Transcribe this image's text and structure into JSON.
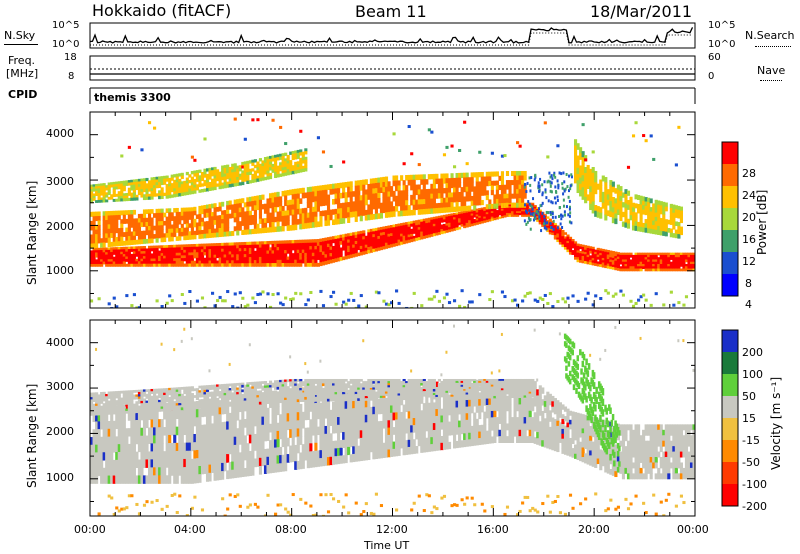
{
  "header": {
    "site": "Hokkaido (fitACF)",
    "beam": "Beam 11",
    "date": "18/Mar/2011"
  },
  "noise_panel": {
    "left_label": "N.Sky",
    "right_label": "N.Search",
    "left_ticks": [
      "10^5",
      "10^0"
    ],
    "right_ticks": [
      "10^5",
      "10^0"
    ]
  },
  "freq_panel": {
    "left_label_1": "Freq.",
    "left_label_2": "[MHz]",
    "left_ticks": [
      "18",
      "8"
    ],
    "right_label": "Nave",
    "right_ticks": [
      "60",
      "0"
    ]
  },
  "cpid_panel": {
    "label": "CPID",
    "value": "themis 3300"
  },
  "power_panel": {
    "ylabel": "Slant Range [km]",
    "yticks": [
      "4000",
      "3000",
      "2000",
      "1000"
    ],
    "colorbar_label": "Power [dB]",
    "colorbar_ticks": [
      "28",
      "24",
      "20",
      "16",
      "12",
      "8",
      "4"
    ],
    "colorbar_colors": [
      "#ff0000",
      "#ff6a00",
      "#ffc000",
      "#a8d83a",
      "#3fa06a",
      "#1a4fd0",
      "#0000ff"
    ]
  },
  "velocity_panel": {
    "ylabel": "Slant Range [km]",
    "yticks": [
      "4000",
      "3000",
      "2000",
      "1000"
    ],
    "colorbar_label": "Velocity [m s⁻¹]",
    "colorbar_ticks": [
      "200",
      "100",
      "50",
      "15",
      "-15",
      "-50",
      "-100",
      "-200"
    ],
    "colorbar_colors": [
      "#1a2fc8",
      "#1a7a3a",
      "#5fcf3a",
      "#c8c8c0",
      "#f0c040",
      "#ff8a00",
      "#ff3a00",
      "#ff0000"
    ]
  },
  "x_axis": {
    "ticks": [
      "00:00",
      "04:00",
      "08:00",
      "12:00",
      "16:00",
      "20:00",
      "00:00"
    ],
    "label": "Time UT"
  },
  "chart_data": {
    "type": "heatmap",
    "x_range_hours": [
      0,
      24
    ],
    "y_range_km": [
      180,
      4500
    ],
    "power_bands": [
      {
        "name": "near-range E",
        "t": [
          0,
          9,
          16.5,
          17.5,
          19.3,
          21,
          24
        ],
        "lo": [
          1100,
          1100,
          2200,
          2200,
          1200,
          1000,
          1000
        ],
        "hi": [
          1500,
          1700,
          2500,
          2500,
          1600,
          1400,
          1400
        ],
        "level": 28
      },
      {
        "name": "main F",
        "t": [
          0,
          4,
          8,
          12,
          16.5,
          17.2
        ],
        "lo": [
          1500,
          1700,
          1900,
          2200,
          2400,
          2400
        ],
        "hi": [
          2300,
          2400,
          2800,
          3100,
          3200,
          3200
        ],
        "level": 24
      },
      {
        "name": "far F",
        "t": [
          0,
          3,
          6,
          8.5
        ],
        "lo": [
          2500,
          2600,
          2900,
          3200
        ],
        "hi": [
          2900,
          3100,
          3400,
          3700
        ],
        "level": 20
      },
      {
        "name": "after 19h",
        "t": [
          19.2,
          20,
          21.5,
          23.5
        ],
        "lo": [
          2800,
          2200,
          1900,
          1700
        ],
        "hi": [
          3900,
          3200,
          2700,
          2400
        ],
        "level": 20
      }
    ],
    "velocity_main": {
      "t": [
        0,
        4,
        8,
        12,
        16,
        17.5,
        19,
        21,
        24
      ],
      "lo": [
        900,
        900,
        1200,
        1500,
        1800,
        1800,
        1500,
        1000,
        1000
      ],
      "hi": [
        2600,
        2700,
        3000,
        3100,
        3200,
        3200,
        2500,
        2200,
        2200
      ],
      "value": 0
    },
    "velocity_far": {
      "t": [
        0,
        3,
        8,
        17.5
      ],
      "lo": [
        2400,
        2500,
        2700,
        2800
      ],
      "hi": [
        2900,
        3000,
        3200,
        3200
      ],
      "value": 0
    },
    "velocity_positive_streak": {
      "t": [
        18.8,
        19.5,
        20.3,
        21
      ],
      "lo": [
        3200,
        2600,
        1600,
        1000
      ],
      "hi": [
        4200,
        3800,
        3000,
        2000
      ],
      "value": 60
    },
    "noise_sky_base": 1.0,
    "noise_search_base": 1.0,
    "freq_mhz": 11,
    "nave": 40
  }
}
